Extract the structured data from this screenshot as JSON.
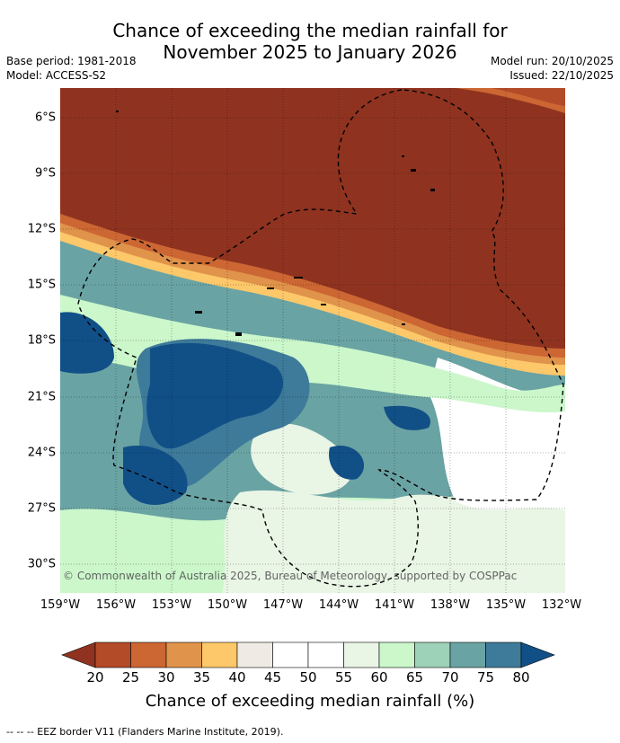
{
  "title_line1": "Chance of exceeding the median rainfall for",
  "title_line2": "November 2025 to January 2026",
  "meta": {
    "base_period": "Base period: 1981-2018",
    "model": "Model: ACCESS-S2",
    "model_run": "Model run: 20/10/2025",
    "issued": "Issued: 22/10/2025"
  },
  "lat_labels": [
    "6°S",
    "9°S",
    "12°S",
    "15°S",
    "18°S",
    "21°S",
    "24°S",
    "27°S",
    "30°S"
  ],
  "lon_labels": [
    "159°W",
    "156°W",
    "153°W",
    "150°W",
    "147°W",
    "144°W",
    "141°W",
    "138°W",
    "135°W",
    "132°W"
  ],
  "copyright": "© Commonwealth of Australia 2025, Bureau of Meteorology, supported by COSPPac",
  "colorbar": {
    "ticks": [
      "20",
      "25",
      "30",
      "35",
      "40",
      "45",
      "50",
      "55",
      "60",
      "65",
      "70",
      "75",
      "80"
    ],
    "colors": [
      "#8f3320",
      "#b34a28",
      "#cc6633",
      "#e0934a",
      "#fdc86a",
      "#efebe4",
      "#ffffff",
      "#ffffff",
      "#e9f5e5",
      "#cbf7cb",
      "#9dd1b8",
      "#6aa3a3",
      "#3e7a99",
      "#114f87"
    ],
    "label": "Chance of exceeding median rainfall (%)"
  },
  "footer": "-- -- -- EEZ border V11 (Flanders Marine Institute, 2019)."
}
